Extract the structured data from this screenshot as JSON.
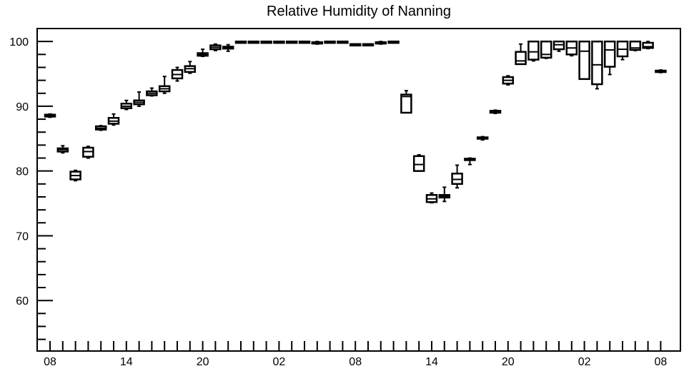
{
  "chart_data": {
    "type": "boxplot",
    "title": "Relative Humidity of Nanning",
    "xlabel": "",
    "ylabel": "",
    "ylim": [
      52.2,
      102
    ],
    "y_ticks": [
      60,
      70,
      80,
      90,
      100
    ],
    "y_tick_labels": [
      "60",
      "70",
      "80",
      "90",
      "100"
    ],
    "x_ticks": [
      {
        "hour": 0,
        "label": "08"
      },
      {
        "hour": 6,
        "label": "14"
      },
      {
        "hour": 12,
        "label": "20"
      },
      {
        "hour": 18,
        "label": "02"
      },
      {
        "hour": 24,
        "label": "08"
      },
      {
        "hour": 30,
        "label": "14"
      },
      {
        "hour": 36,
        "label": "20"
      },
      {
        "hour": 42,
        "label": "02"
      },
      {
        "hour": 48,
        "label": "08"
      }
    ],
    "grid": false,
    "boxes": [
      {
        "hour": 0,
        "q1": 88.4,
        "median": 88.6,
        "q3": 88.7,
        "min": 88.3,
        "max": 88.8
      },
      {
        "hour": 1,
        "q1": 83.0,
        "median": 83.3,
        "q3": 83.5,
        "min": 82.8,
        "max": 83.9
      },
      {
        "hour": 2,
        "q1": 78.7,
        "median": 79.3,
        "q3": 79.9,
        "min": 78.5,
        "max": 80.1
      },
      {
        "hour": 3,
        "q1": 82.2,
        "median": 83.0,
        "q3": 83.6,
        "min": 82.0,
        "max": 83.8
      },
      {
        "hour": 4,
        "q1": 86.4,
        "median": 86.6,
        "q3": 86.9,
        "min": 86.3,
        "max": 87.0
      },
      {
        "hour": 5,
        "q1": 87.3,
        "median": 87.7,
        "q3": 88.2,
        "min": 87.1,
        "max": 88.8
      },
      {
        "hour": 6,
        "q1": 89.7,
        "median": 90.0,
        "q3": 90.4,
        "min": 89.5,
        "max": 90.9
      },
      {
        "hour": 7,
        "q1": 90.3,
        "median": 90.6,
        "q3": 90.9,
        "min": 90.0,
        "max": 92.2
      },
      {
        "hour": 8,
        "q1": 91.7,
        "median": 92.0,
        "q3": 92.3,
        "min": 91.6,
        "max": 92.8
      },
      {
        "hour": 9,
        "q1": 92.3,
        "median": 92.7,
        "q3": 93.1,
        "min": 92.0,
        "max": 94.6
      },
      {
        "hour": 10,
        "q1": 94.3,
        "median": 94.9,
        "q3": 95.6,
        "min": 93.9,
        "max": 96.0
      },
      {
        "hour": 11,
        "q1": 95.3,
        "median": 95.8,
        "q3": 96.2,
        "min": 95.1,
        "max": 96.9
      },
      {
        "hour": 12,
        "q1": 97.8,
        "median": 98.0,
        "q3": 98.2,
        "min": 97.7,
        "max": 98.8
      },
      {
        "hour": 13,
        "q1": 98.8,
        "median": 99.1,
        "q3": 99.4,
        "min": 98.6,
        "max": 99.6
      },
      {
        "hour": 14,
        "q1": 98.9,
        "median": 99.1,
        "q3": 99.2,
        "min": 98.5,
        "max": 99.5
      },
      {
        "hour": 15,
        "q1": 99.9,
        "median": 100.0,
        "q3": 100.0,
        "min": 99.8,
        "max": 100.0
      },
      {
        "hour": 16,
        "q1": 100.0,
        "median": 100.0,
        "q3": 100.0,
        "min": 100.0,
        "max": 100.0
      },
      {
        "hour": 17,
        "q1": 100.0,
        "median": 100.0,
        "q3": 100.0,
        "min": 100.0,
        "max": 100.0
      },
      {
        "hour": 18,
        "q1": 100.0,
        "median": 100.0,
        "q3": 100.0,
        "min": 100.0,
        "max": 100.0
      },
      {
        "hour": 19,
        "q1": 100.0,
        "median": 100.0,
        "q3": 100.0,
        "min": 100.0,
        "max": 100.0
      },
      {
        "hour": 20,
        "q1": 100.0,
        "median": 100.0,
        "q3": 100.0,
        "min": 100.0,
        "max": 100.0
      },
      {
        "hour": 21,
        "q1": 99.7,
        "median": 99.8,
        "q3": 99.9,
        "min": 99.6,
        "max": 100.0
      },
      {
        "hour": 22,
        "q1": 100.0,
        "median": 100.0,
        "q3": 100.0,
        "min": 100.0,
        "max": 100.0
      },
      {
        "hour": 23,
        "q1": 100.0,
        "median": 100.0,
        "q3": 100.0,
        "min": 100.0,
        "max": 100.0
      },
      {
        "hour": 24,
        "q1": 99.6,
        "median": 99.6,
        "q3": 99.6,
        "min": 99.5,
        "max": 99.6
      },
      {
        "hour": 25,
        "q1": 99.6,
        "median": 99.6,
        "q3": 99.6,
        "min": 99.5,
        "max": 99.6
      },
      {
        "hour": 26,
        "q1": 99.7,
        "median": 99.8,
        "q3": 99.9,
        "min": 99.6,
        "max": 100.0
      },
      {
        "hour": 27,
        "q1": 100.0,
        "median": 100.0,
        "q3": 100.0,
        "min": 100.0,
        "max": 100.0
      },
      {
        "hour": 28,
        "q1": 89.0,
        "median": 91.5,
        "q3": 91.8,
        "min": 89.0,
        "max": 92.4
      },
      {
        "hour": 29,
        "q1": 80.0,
        "median": 81.0,
        "q3": 82.3,
        "min": 80.0,
        "max": 82.5
      },
      {
        "hour": 30,
        "q1": 75.2,
        "median": 75.7,
        "q3": 76.3,
        "min": 75.1,
        "max": 76.6
      },
      {
        "hour": 31,
        "q1": 75.9,
        "median": 76.1,
        "q3": 76.3,
        "min": 75.3,
        "max": 77.5
      },
      {
        "hour": 32,
        "q1": 78.0,
        "median": 78.7,
        "q3": 79.6,
        "min": 77.4,
        "max": 80.9
      },
      {
        "hour": 33,
        "q1": 81.7,
        "median": 81.8,
        "q3": 81.9,
        "min": 81.0,
        "max": 82.0
      },
      {
        "hour": 34,
        "q1": 85.0,
        "median": 85.1,
        "q3": 85.2,
        "min": 84.8,
        "max": 85.3
      },
      {
        "hour": 35,
        "q1": 89.0,
        "median": 89.2,
        "q3": 89.3,
        "min": 88.9,
        "max": 89.4
      },
      {
        "hour": 36,
        "q1": 93.5,
        "median": 94.0,
        "q3": 94.5,
        "min": 93.3,
        "max": 94.7
      },
      {
        "hour": 37,
        "q1": 96.5,
        "median": 97.0,
        "q3": 98.4,
        "min": 96.5,
        "max": 99.6
      },
      {
        "hour": 38,
        "q1": 97.2,
        "median": 98.4,
        "q3": 100.0,
        "min": 97.0,
        "max": 100.0
      },
      {
        "hour": 39,
        "q1": 97.5,
        "median": 98.0,
        "q3": 100.0,
        "min": 97.4,
        "max": 100.0
      },
      {
        "hour": 40,
        "q1": 98.8,
        "median": 99.5,
        "q3": 100.0,
        "min": 98.5,
        "max": 100.0
      },
      {
        "hour": 41,
        "q1": 98.0,
        "median": 99.0,
        "q3": 100.0,
        "min": 97.8,
        "max": 100.0
      },
      {
        "hour": 42,
        "q1": 94.2,
        "median": 98.5,
        "q3": 100.0,
        "min": 94.2,
        "max": 100.0
      },
      {
        "hour": 43,
        "q1": 93.4,
        "median": 96.4,
        "q3": 100.0,
        "min": 92.7,
        "max": 100.0
      },
      {
        "hour": 44,
        "q1": 96.1,
        "median": 98.7,
        "q3": 100.0,
        "min": 94.9,
        "max": 100.0
      },
      {
        "hour": 45,
        "q1": 97.7,
        "median": 98.8,
        "q3": 100.0,
        "min": 97.2,
        "max": 100.0
      },
      {
        "hour": 46,
        "q1": 98.7,
        "median": 99.0,
        "q3": 100.0,
        "min": 98.6,
        "max": 100.0
      },
      {
        "hour": 47,
        "q1": 99.0,
        "median": 99.2,
        "q3": 99.8,
        "min": 98.9,
        "max": 100.0
      },
      {
        "hour": 48,
        "q1": 95.3,
        "median": 95.4,
        "q3": 95.5,
        "min": 95.2,
        "max": 95.6
      }
    ]
  }
}
